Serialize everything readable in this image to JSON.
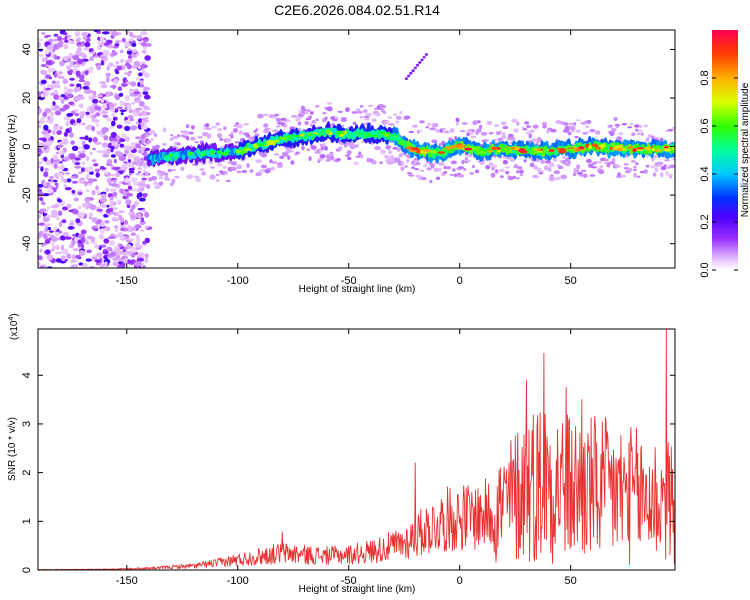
{
  "title": "C2E6.2026.084.02.51.R14",
  "chart_data": [
    {
      "type": "heatmap",
      "xlabel": "Height of straight line (km)",
      "ylabel": "Frequency (Hz)",
      "xlim": [
        -190,
        97
      ],
      "ylim": [
        -50,
        48
      ],
      "x_ticks": [
        -150,
        -100,
        -50,
        0,
        50
      ],
      "y_ticks": [
        -40,
        -20,
        0,
        20,
        40
      ],
      "colorbar": {
        "label": "Normalized spectral amplitude",
        "range": [
          0,
          1
        ],
        "ticks": [
          0.0,
          0.2,
          0.4,
          0.6,
          0.8
        ],
        "tick_labels": [
          "0.0",
          "0.2",
          "0.4",
          "0.6",
          "0.8"
        ]
      },
      "signal_track": {
        "x": [
          -138,
          -120,
          -100,
          -80,
          -60,
          -50,
          -40,
          -35,
          -30,
          -25,
          -22,
          -20,
          -10,
          -5,
          0,
          10,
          20,
          40,
          60,
          80,
          95
        ],
        "y": [
          -5,
          -3,
          -2,
          3,
          6,
          5,
          5,
          5,
          4,
          2,
          -1,
          -1,
          -3,
          -1,
          0,
          -2,
          -1,
          -2,
          0,
          -1,
          -1
        ]
      },
      "noise_region_x": [
        -190,
        -140
      ]
    },
    {
      "type": "line",
      "xlabel": "Height of straight line (km)",
      "ylabel": "SNR (10 * v/v)",
      "scale_label": "(x10",
      "scale_exp": "4",
      "scale_close": ")",
      "xlim": [
        -190,
        97
      ],
      "ylim": [
        0,
        4.95
      ],
      "x_ticks": [
        -150,
        -100,
        -50,
        0,
        50
      ],
      "y_ticks": [
        0,
        1,
        2,
        3,
        4
      ],
      "series_color": "#e83232",
      "envelope": {
        "x": [
          -190,
          -160,
          -140,
          -120,
          -110,
          -100,
          -90,
          -80,
          -70,
          -60,
          -50,
          -40,
          -30,
          -25,
          -20,
          -15,
          -10,
          -5,
          0,
          10,
          20,
          30,
          40,
          50,
          60,
          70,
          80,
          90,
          95,
          97
        ],
        "y": [
          0.01,
          0.02,
          0.05,
          0.12,
          0.2,
          0.3,
          0.4,
          0.5,
          0.45,
          0.42,
          0.45,
          0.55,
          0.7,
          0.8,
          1.0,
          1.2,
          1.35,
          1.5,
          1.55,
          1.6,
          1.8,
          2.4,
          2.6,
          2.3,
          2.3,
          2.2,
          2.1,
          2.0,
          1.9,
          1.8
        ]
      },
      "peaks": [
        {
          "x": -80,
          "y": 0.78
        },
        {
          "x": -20,
          "y": 2.2
        },
        {
          "x": 30,
          "y": 3.9
        },
        {
          "x": 38,
          "y": 4.45
        },
        {
          "x": 48,
          "y": 3.75
        },
        {
          "x": 55,
          "y": 3.5
        },
        {
          "x": 93,
          "y": 4.95
        }
      ]
    }
  ]
}
